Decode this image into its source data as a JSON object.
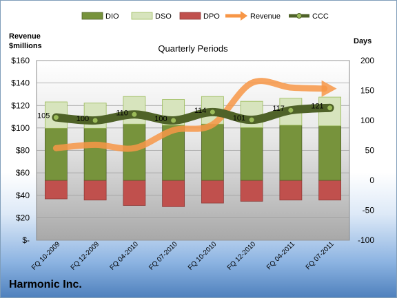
{
  "chart_data": {
    "type": "bar",
    "title": "Quarterly Periods",
    "company": "Harmonic Inc.",
    "left_axis_title": [
      "Revenue",
      "$millions"
    ],
    "right_axis_title": "Days",
    "categories": [
      "FQ 10-2009",
      "FQ 12-2009",
      "FQ 04-2010",
      "FQ 07-2010",
      "FQ 10-2010",
      "FQ 12-2010",
      "FQ 04-2011",
      "FQ 07-2011"
    ],
    "left_ticks": [
      "$-",
      "$20",
      "$40",
      "$60",
      "$80",
      "$100",
      "$120",
      "$140",
      "$160"
    ],
    "right_ticks": [
      "-100",
      "-50",
      "0",
      "50",
      "100",
      "150",
      "200"
    ],
    "ylim_left": [
      0,
      160
    ],
    "ylim_right": [
      -100,
      200
    ],
    "legend_position": "top",
    "series": [
      {
        "name": "DIO",
        "axis": "right",
        "kind": "stacked-bar",
        "color": "#77933c",
        "values": [
          87,
          87,
          94,
          92,
          94,
          88,
          92,
          91
        ]
      },
      {
        "name": "DSO",
        "axis": "right",
        "kind": "stacked-bar",
        "color": "#d7e4bd",
        "values": [
          44,
          42,
          46,
          43,
          46,
          44,
          45,
          48
        ]
      },
      {
        "name": "DPO",
        "axis": "right",
        "kind": "bar",
        "color": "#c0504d",
        "values": [
          -31,
          -33,
          -42,
          -44,
          -38,
          -35,
          -33,
          -33
        ]
      },
      {
        "name": "Revenue",
        "axis": "left",
        "kind": "arrow-line",
        "color": "#f79646",
        "values": [
          82,
          85,
          82,
          98,
          103,
          140,
          136,
          135
        ]
      },
      {
        "name": "CCC",
        "axis": "right",
        "kind": "line",
        "color": "#4f6228",
        "values": [
          105,
          100,
          110,
          100,
          114,
          101,
          117,
          121
        ]
      }
    ],
    "data_labels": [
      "105",
      "100",
      "110",
      "100",
      "114",
      "101",
      "117",
      "121"
    ]
  }
}
